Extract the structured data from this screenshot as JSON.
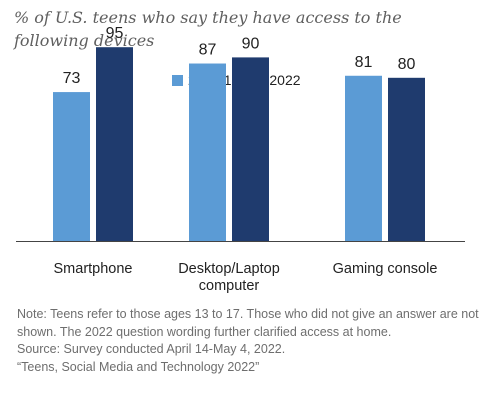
{
  "subtitle": "% of U.S. teens who say they have access to the following devices",
  "legend": [
    {
      "label": "2014-15",
      "color": "#5b9bd5"
    },
    {
      "label": "2022",
      "color": "#1f3b6e"
    }
  ],
  "chart_data": {
    "type": "bar",
    "title": "",
    "categories": [
      [
        "Smartphone"
      ],
      [
        "Desktop/Laptop",
        "computer"
      ],
      [
        "Gaming console"
      ]
    ],
    "series": [
      {
        "name": "2014-15",
        "values": [
          73,
          87,
          81
        ],
        "color": "#5b9bd5"
      },
      {
        "name": "2022",
        "values": [
          95,
          90,
          80
        ],
        "color": "#1f3b6e"
      }
    ],
    "xlabel": "",
    "ylabel": "",
    "ylim": [
      0,
      100
    ],
    "grid": false,
    "legend_position": "top"
  },
  "notes": {
    "note": "Note: Teens refer to those ages 13 to 17. Those who did not give an answer are not shown. The 2022 question wording further clarified access at home.",
    "source": "Source: Survey conducted April 14-May 4, 2022.",
    "report": "“Teens, Social Media and Technology 2022”"
  }
}
